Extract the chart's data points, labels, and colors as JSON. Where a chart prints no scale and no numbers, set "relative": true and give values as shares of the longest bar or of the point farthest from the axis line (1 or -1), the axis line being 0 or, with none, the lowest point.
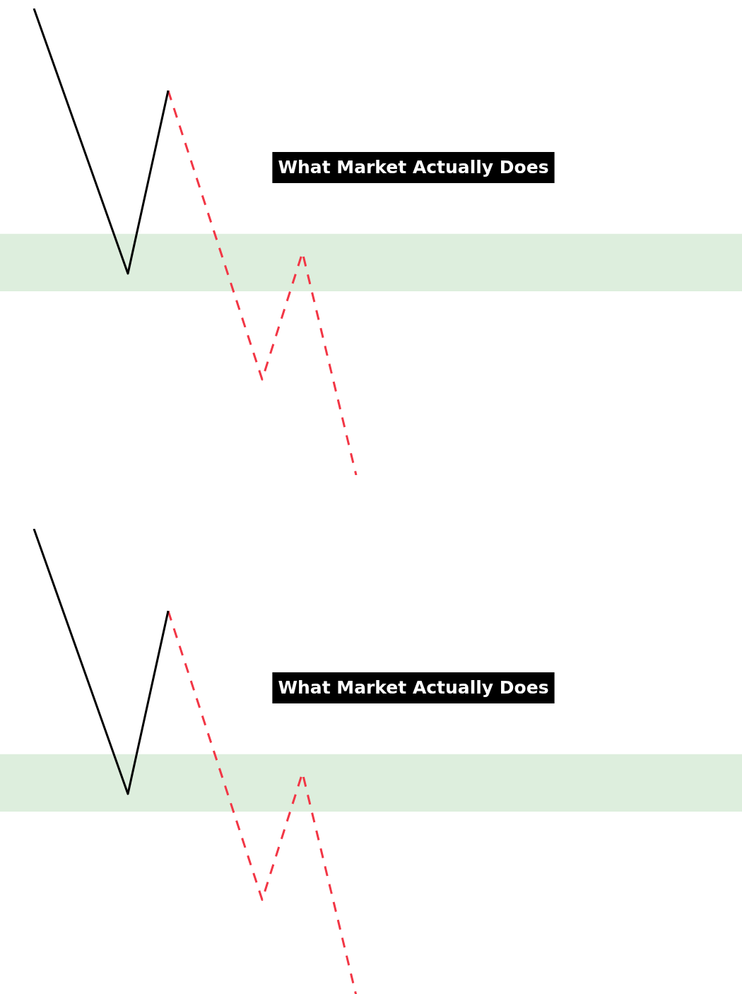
{
  "chart_data": [
    {
      "type": "line",
      "relative": true,
      "tick_labels": false,
      "legend": false,
      "marker": "none",
      "categories": [
        null,
        null,
        null,
        null,
        null,
        null,
        null,
        null,
        null,
        null,
        null,
        null,
        null,
        null,
        null,
        null,
        null,
        null,
        null,
        null,
        null,
        null,
        null,
        null,
        null,
        null,
        null,
        null,
        null,
        null,
        null,
        null,
        null,
        null,
        null,
        null,
        null,
        null,
        null,
        null,
        null,
        null,
        null,
        null,
        null,
        null,
        null,
        null,
        null,
        null,
        null,
        null,
        null,
        null,
        null
      ],
      "series": [
        {
          "color": "#000000",
          "line_style": "solid",
          "values": [
            null,
            null,
            1,
            null,
            null,
            null,
            null,
            null,
            null,
            0.432,
            null,
            null,
            0.824,
            null,
            null,
            null,
            null,
            null,
            null,
            null,
            null,
            null,
            null,
            null,
            null,
            null,
            null,
            null,
            null,
            null,
            null,
            null,
            null,
            null,
            null,
            null,
            null,
            null,
            null,
            null,
            null,
            null,
            null,
            null,
            null,
            null,
            null,
            null,
            null,
            null,
            null,
            null,
            null,
            null,
            null
          ]
        },
        {
          "color": "#f23645",
          "line_style": "dashed",
          "values": [
            null,
            null,
            null,
            null,
            null,
            null,
            null,
            null,
            null,
            null,
            null,
            null,
            0.824,
            null,
            null,
            null,
            null,
            null,
            null,
            0.205,
            null,
            null,
            0.477,
            null,
            null,
            null,
            0,
            null,
            null,
            null,
            null,
            null,
            null,
            null,
            null,
            null,
            null,
            null,
            null,
            null,
            null,
            null,
            null,
            null,
            null,
            null,
            null,
            null,
            null,
            null,
            null,
            null,
            null,
            null,
            null
          ]
        }
      ],
      "bands": [
        {
          "axis": "y",
          "from": 0.394,
          "to": 0.517,
          "color": "#ddeedd"
        }
      ],
      "annotations": [
        "What Market Actually Does"
      ]
    },
    {
      "type": "line",
      "relative": true,
      "tick_labels": false,
      "legend": false,
      "marker": "none",
      "categories": [
        null,
        null,
        null,
        null,
        null,
        null,
        null,
        null,
        null,
        null,
        null,
        null,
        null,
        null,
        null,
        null,
        null,
        null,
        null,
        null,
        null,
        null,
        null,
        null,
        null,
        null,
        null,
        null,
        null,
        null,
        null,
        null,
        null,
        null,
        null,
        null,
        null,
        null,
        null,
        null,
        null,
        null,
        null,
        null,
        null,
        null,
        null,
        null,
        null,
        null,
        null,
        null,
        null,
        null,
        null
      ],
      "series": [
        {
          "color": "#000000",
          "line_style": "solid",
          "values": [
            null,
            null,
            1,
            null,
            null,
            null,
            null,
            null,
            null,
            0.432,
            null,
            null,
            0.824,
            null,
            null,
            null,
            null,
            null,
            null,
            null,
            null,
            null,
            null,
            null,
            null,
            null,
            null,
            null,
            null,
            null,
            null,
            null,
            null,
            null,
            null,
            null,
            null,
            null,
            null,
            null,
            null,
            null,
            null,
            null,
            null,
            null,
            null,
            null,
            null,
            null,
            null,
            null,
            null,
            null,
            null
          ]
        },
        {
          "color": "#f23645",
          "line_style": "dashed",
          "values": [
            null,
            null,
            null,
            null,
            null,
            null,
            null,
            null,
            null,
            null,
            null,
            null,
            0.824,
            null,
            null,
            null,
            null,
            null,
            null,
            0.205,
            null,
            null,
            0.477,
            null,
            null,
            null,
            0,
            null,
            null,
            null,
            null,
            null,
            null,
            null,
            null,
            null,
            null,
            null,
            null,
            null,
            null,
            null,
            null,
            null,
            null,
            null,
            null,
            null,
            null,
            null,
            null,
            null,
            null,
            null,
            null
          ]
        }
      ],
      "bands": [
        {
          "axis": "y",
          "from": 0.394,
          "to": 0.517,
          "color": "#ddeedd"
        }
      ],
      "annotations": [
        "What Market Actually Does"
      ]
    }
  ]
}
